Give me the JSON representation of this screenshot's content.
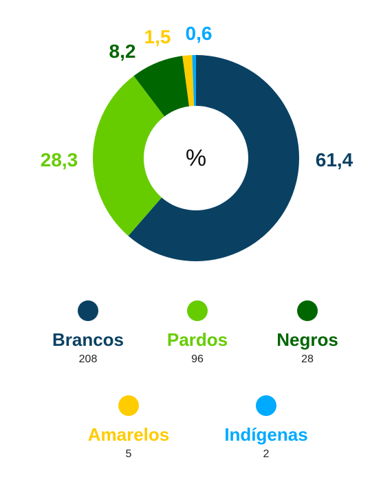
{
  "chart_data": {
    "type": "pie",
    "center_label": "%",
    "series": [
      {
        "name": "Brancos",
        "value": 61.4,
        "label": "61,4",
        "count": "208",
        "color": "#0a4163"
      },
      {
        "name": "Pardos",
        "value": 28.3,
        "label": "28,3",
        "count": "96",
        "color": "#66cc00"
      },
      {
        "name": "Negros",
        "value": 8.2,
        "label": "8,2",
        "count": "28",
        "color": "#006600"
      },
      {
        "name": "Amarelos",
        "value": 1.5,
        "label": "1,5",
        "count": "5",
        "color": "#ffcc00"
      },
      {
        "name": "Indígenas",
        "value": 0.6,
        "label": "0,6",
        "count": "2",
        "color": "#00aaff"
      }
    ],
    "legend_position": "bottom"
  }
}
